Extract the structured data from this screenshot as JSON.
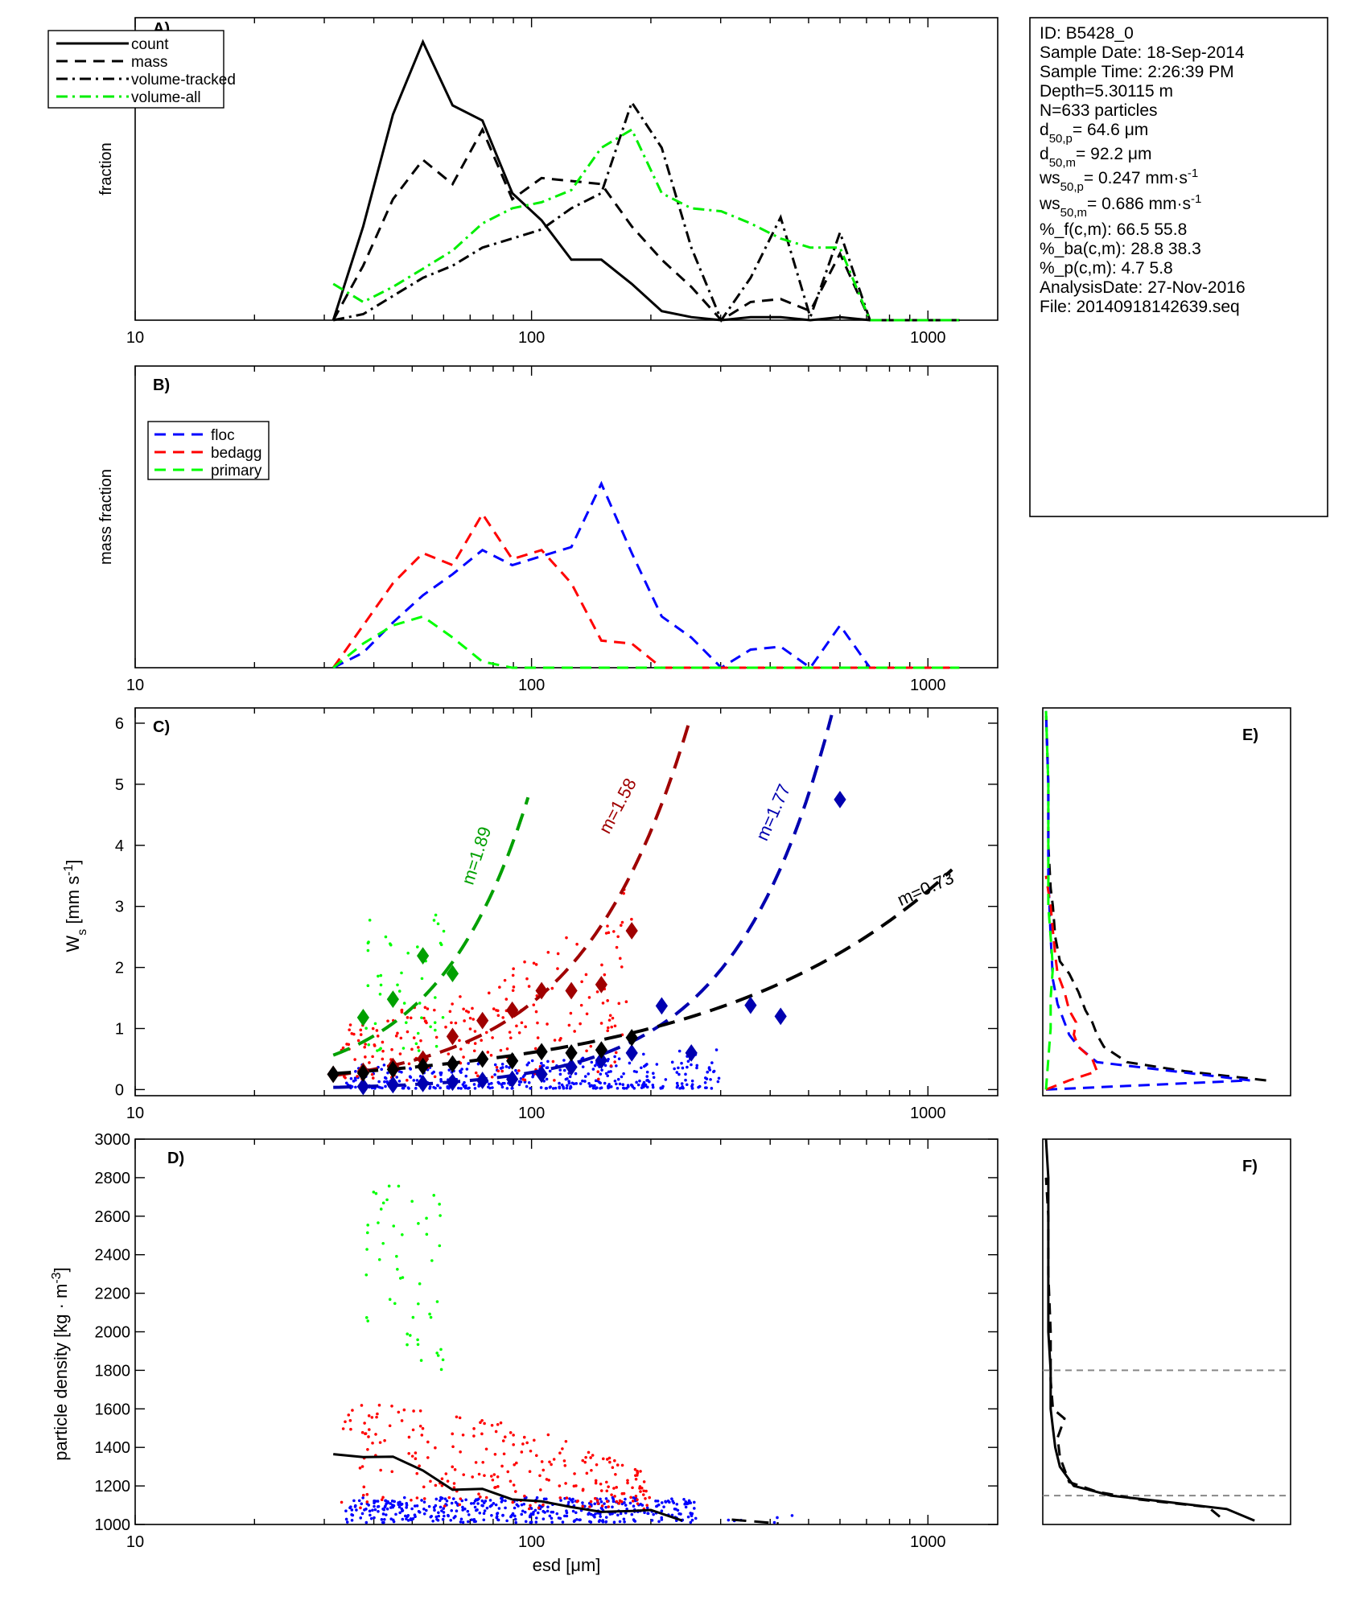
{
  "info_box": {
    "lines": [
      {
        "id": "id",
        "text": "ID: B5428_0"
      },
      {
        "id": "date",
        "text": "Sample Date: 18-Sep-2014"
      },
      {
        "id": "time",
        "text": "Sample Time:  2:26:39 PM"
      },
      {
        "id": "depth",
        "text": "Depth=5.30115 m"
      },
      {
        "id": "n",
        "text": "N=633 particles"
      },
      {
        "id": "d50p",
        "text": "d",
        "sub": "50,p",
        "tail": "=  64.6 μm"
      },
      {
        "id": "d50m",
        "text": "d",
        "sub": "50,m",
        "tail": "=  92.2 μm"
      },
      {
        "id": "ws50p",
        "text": "ws",
        "sub": "50,p",
        "tail": "= 0.247 mm·s",
        "sup": "-1"
      },
      {
        "id": "ws50m",
        "text": "ws",
        "sub": "50,m",
        "tail": "= 0.686 mm·s",
        "sup": "-1"
      },
      {
        "id": "pf",
        "text": "%_f(c,m): 66.5 55.8"
      },
      {
        "id": "pba",
        "text": "%_ba(c,m): 28.8 38.3"
      },
      {
        "id": "pp",
        "text": "%_p(c,m): 4.7 5.8"
      },
      {
        "id": "adate",
        "text": "AnalysisDate: 27-Nov-2016"
      },
      {
        "id": "file",
        "text": "File: 20140918142639.seq"
      }
    ]
  },
  "x_ticks": [
    "10",
    "100",
    "1000"
  ],
  "x_label": "esd [μm]",
  "colors": {
    "count": "#000000",
    "floc": "#0000ff",
    "bedagg": "#ff0000",
    "primary": "#00ff00",
    "volume_all": "#00ee00",
    "fit_green": "#00a000",
    "fit_red": "#a00000",
    "fit_blue": "#0000b0",
    "grid": "#888888"
  },
  "chart_data": [
    {
      "panel": "A)",
      "type": "line",
      "xscale": "log",
      "xlim": [
        10,
        1500
      ],
      "ylabel": "fraction",
      "legend": {
        "position": "top-left",
        "entries": [
          "count",
          "mass",
          "volume-tracked",
          "volume-all"
        ]
      },
      "x": [
        31.6,
        37.6,
        44.7,
        53.2,
        63.2,
        75.2,
        89.4,
        106,
        126,
        150,
        179,
        213,
        253,
        301,
        357,
        425,
        505,
        600,
        714,
        849,
        1010,
        1200
      ],
      "series": [
        {
          "name": "count",
          "style": "solid",
          "color": "#000000",
          "values": [
            0,
            0.31,
            0.68,
            0.92,
            0.71,
            0.66,
            0.42,
            0.33,
            0.2,
            0.2,
            0.12,
            0.03,
            0.01,
            0,
            0.01,
            0.01,
            0,
            0.01,
            0,
            0,
            0,
            0
          ]
        },
        {
          "name": "mass",
          "style": "dashed",
          "color": "#000000",
          "values": [
            0,
            0.18,
            0.4,
            0.53,
            0.45,
            0.63,
            0.4,
            0.47,
            0.46,
            0.45,
            0.31,
            0.2,
            0.11,
            0,
            0.06,
            0.07,
            0.03,
            0.22,
            0,
            0,
            0,
            0
          ]
        },
        {
          "name": "volume-tracked",
          "style": "dashdot",
          "color": "#000000",
          "values": [
            0,
            0.02,
            0.08,
            0.14,
            0.18,
            0.24,
            0.27,
            0.3,
            0.37,
            0.42,
            0.72,
            0.57,
            0.24,
            0,
            0.14,
            0.34,
            0.01,
            0.29,
            0,
            0,
            0,
            0
          ]
        },
        {
          "name": "volume-all",
          "style": "dashdot",
          "color": "#00ee00",
          "values": [
            0.12,
            0.06,
            0.11,
            0.17,
            0.23,
            0.32,
            0.37,
            0.39,
            0.43,
            0.57,
            0.63,
            0.42,
            0.37,
            0.36,
            0.32,
            0.27,
            0.24,
            0.24,
            0,
            0,
            0,
            0
          ]
        }
      ]
    },
    {
      "panel": "B)",
      "type": "line",
      "xscale": "log",
      "xlim": [
        10,
        1500
      ],
      "ylabel": "mass fraction",
      "legend": {
        "position": "top-left",
        "entries": [
          "floc",
          "bedagg",
          "primary"
        ]
      },
      "x": [
        31.6,
        37.6,
        44.7,
        53.2,
        63.2,
        75.2,
        89.4,
        106,
        126,
        150,
        179,
        213,
        253,
        301,
        357,
        425,
        505,
        600,
        714,
        849,
        1010,
        1200
      ],
      "series": [
        {
          "name": "floc",
          "style": "dashed",
          "color": "#0000ff",
          "values": [
            0,
            0.05,
            0.15,
            0.24,
            0.31,
            0.39,
            0.34,
            0.37,
            0.4,
            0.61,
            0.38,
            0.17,
            0.1,
            0,
            0.06,
            0.07,
            0,
            0.14,
            0,
            0,
            0,
            0
          ]
        },
        {
          "name": "bedagg",
          "style": "dashed",
          "color": "#ff0000",
          "values": [
            0,
            0.14,
            0.28,
            0.38,
            0.34,
            0.51,
            0.36,
            0.39,
            0.28,
            0.09,
            0.08,
            0,
            0,
            0,
            0,
            0,
            0,
            0,
            0,
            0,
            0,
            0
          ]
        },
        {
          "name": "primary",
          "style": "dashed",
          "color": "#00ff00",
          "values": [
            0,
            0.08,
            0.14,
            0.17,
            0.1,
            0.02,
            0,
            0,
            0,
            0,
            0,
            0,
            0,
            0,
            0,
            0,
            0,
            0,
            0,
            0,
            0,
            0
          ]
        }
      ]
    },
    {
      "panel": "C)",
      "type": "scatter",
      "xscale": "log",
      "xlim": [
        10,
        1500
      ],
      "ylim": [
        -0.1,
        6.25
      ],
      "yticks": [
        0,
        1,
        2,
        3,
        4,
        5,
        6
      ],
      "ylabel": "W_s [mm s^-1]",
      "fits": [
        {
          "label": "m=1.89",
          "color": "#00a000",
          "k": 0.000825,
          "m": 1.89,
          "xmin": 31.6,
          "xmax": 98
        },
        {
          "label": "m=1.58",
          "color": "#a00000",
          "k": 0.00098,
          "m": 1.58,
          "xmin": 31.6,
          "xmax": 250
        },
        {
          "label": "m=1.77",
          "color": "#0000b0",
          "k": 8.08e-05,
          "m": 1.77,
          "xmin": 31.6,
          "xmax": 640
        },
        {
          "label": "m=0.73",
          "color": "#000000",
          "k": 0.021,
          "m": 0.73,
          "xmin": 31.6,
          "xmax": 1150
        }
      ],
      "medians": {
        "primary": {
          "color": "#00a000",
          "points": [
            [
              37.6,
              1.18
            ],
            [
              44.7,
              1.48
            ],
            [
              53.2,
              2.19
            ],
            [
              63.2,
              1.9
            ]
          ]
        },
        "bedagg": {
          "color": "#a00000",
          "points": [
            [
              31.6,
              0.25
            ],
            [
              37.6,
              0.3
            ],
            [
              44.7,
              0.38
            ],
            [
              53.2,
              0.5
            ],
            [
              63.2,
              0.87
            ],
            [
              75.2,
              1.13
            ],
            [
              89.4,
              1.3
            ],
            [
              106,
              1.62
            ],
            [
              126,
              1.62
            ],
            [
              150,
              1.72
            ],
            [
              179,
              2.6
            ]
          ]
        },
        "floc": {
          "color": "#0000b0",
          "points": [
            [
              37.6,
              0.05
            ],
            [
              44.7,
              0.08
            ],
            [
              53.2,
              0.1
            ],
            [
              63.2,
              0.12
            ],
            [
              75.2,
              0.15
            ],
            [
              89.4,
              0.17
            ],
            [
              106,
              0.25
            ],
            [
              126,
              0.37
            ],
            [
              150,
              0.48
            ],
            [
              179,
              0.6
            ],
            [
              213,
              1.37
            ],
            [
              253,
              0.6
            ],
            [
              357,
              1.38
            ],
            [
              425,
              1.2
            ],
            [
              600,
              4.75
            ]
          ]
        },
        "all": {
          "color": "#000000",
          "points": [
            [
              31.6,
              0.25
            ],
            [
              37.6,
              0.27
            ],
            [
              44.7,
              0.33
            ],
            [
              53.2,
              0.38
            ],
            [
              63.2,
              0.42
            ],
            [
              75.2,
              0.5
            ],
            [
              89.4,
              0.47
            ],
            [
              106,
              0.62
            ],
            [
              126,
              0.6
            ],
            [
              150,
              0.65
            ],
            [
              179,
              0.85
            ]
          ]
        }
      }
    },
    {
      "panel": "D)",
      "type": "scatter",
      "xscale": "log",
      "xlim": [
        10,
        1500
      ],
      "ylim": [
        1000,
        3000
      ],
      "yticks": [
        1000,
        1200,
        1400,
        1600,
        1800,
        2000,
        2200,
        2400,
        2600,
        2800,
        3000
      ],
      "ylabel": "particle density [kg · m^-3]",
      "median_line": {
        "style": "solid",
        "color": "#000000",
        "points": [
          [
            31.6,
            1365
          ],
          [
            37.6,
            1350
          ],
          [
            44.7,
            1352
          ],
          [
            53.2,
            1280
          ],
          [
            63.2,
            1180
          ],
          [
            75.2,
            1185
          ],
          [
            89.4,
            1130
          ],
          [
            106,
            1120
          ],
          [
            126,
            1090
          ],
          [
            150,
            1065
          ],
          [
            179,
            1070
          ],
          [
            200,
            1075
          ],
          [
            240,
            1020
          ]
        ]
      },
      "median_tail": {
        "style": "dashed",
        "color": "#000000",
        "points": [
          [
            320,
            1025
          ],
          [
            420,
            1005
          ]
        ]
      }
    },
    {
      "panel": "E)",
      "type": "line",
      "description_axis": "histogram of W_s (shared y with C)",
      "ylim": [
        -0.1,
        6.25
      ],
      "series": [
        {
          "name": "all",
          "style": "dashed",
          "color": "#000000",
          "y": [
            0.15,
            0.3,
            0.45,
            0.7,
            0.9,
            1.1,
            1.3,
            1.6,
            1.9,
            2.1,
            2.5,
            3.0,
            3.3,
            4.0,
            5.0,
            6.2
          ],
          "values": [
            0.95,
            0.6,
            0.35,
            0.25,
            0.22,
            0.2,
            0.17,
            0.14,
            0.1,
            0.06,
            0.04,
            0.03,
            0.02,
            0.01,
            0.01,
            0.0
          ]
        },
        {
          "name": "floc",
          "style": "dashed",
          "color": "#0000ff",
          "y": [
            0.0,
            0.15,
            0.3,
            0.45,
            0.7,
            0.9,
            1.1,
            1.4,
            1.8,
            2.5,
            3.5,
            5.0,
            6.2
          ],
          "values": [
            0.0,
            0.88,
            0.55,
            0.22,
            0.14,
            0.1,
            0.08,
            0.05,
            0.03,
            0.02,
            0.01,
            0.01,
            0.0
          ]
        },
        {
          "name": "bedagg",
          "style": "dashed",
          "color": "#ff0000",
          "y": [
            0.0,
            0.15,
            0.3,
            0.5,
            0.7,
            0.9,
            1.1,
            1.3,
            1.6,
            1.9,
            2.2,
            2.6,
            3.0,
            3.5
          ],
          "values": [
            0.0,
            0.1,
            0.22,
            0.2,
            0.14,
            0.12,
            0.13,
            0.1,
            0.08,
            0.05,
            0.04,
            0.03,
            0.02,
            0.0
          ]
        },
        {
          "name": "primary",
          "style": "dashed",
          "color": "#00ff00",
          "y": [
            0.0,
            0.5,
            1.0,
            1.5,
            2.0,
            2.5,
            3.0,
            4.0,
            5.0,
            6.2
          ],
          "values": [
            0.0,
            0.01,
            0.02,
            0.02,
            0.03,
            0.02,
            0.01,
            0.01,
            0.01,
            0.0
          ]
        }
      ]
    },
    {
      "panel": "F)",
      "type": "line",
      "description_axis": "histogram of particle density (shared y with D)",
      "ylim": [
        1000,
        3000
      ],
      "reference_lines": [
        1150,
        1800
      ],
      "series": [
        {
          "name": "solid",
          "style": "solid",
          "color": "#000000",
          "y": [
            1020,
            1080,
            1120,
            1150,
            1200,
            1300,
            1400,
            1500,
            1600,
            1800,
            2000,
            2200,
            2400,
            2600,
            2800,
            3000
          ],
          "values": [
            0.9,
            0.78,
            0.5,
            0.28,
            0.12,
            0.06,
            0.04,
            0.03,
            0.02,
            0.02,
            0.01,
            0.01,
            0.01,
            0.01,
            0.01,
            0.0
          ]
        },
        {
          "name": "dashed",
          "style": "dashed",
          "color": "#000000",
          "y": [
            1040,
            1090,
            1130,
            1170,
            1220,
            1350,
            1450,
            1550,
            1600,
            1750,
            2000,
            2300,
            2600,
            2800
          ],
          "values": [
            0.75,
            0.7,
            0.4,
            0.22,
            0.1,
            0.06,
            0.05,
            0.08,
            0.03,
            0.02,
            0.02,
            0.01,
            0.01,
            0.0
          ]
        }
      ]
    }
  ]
}
